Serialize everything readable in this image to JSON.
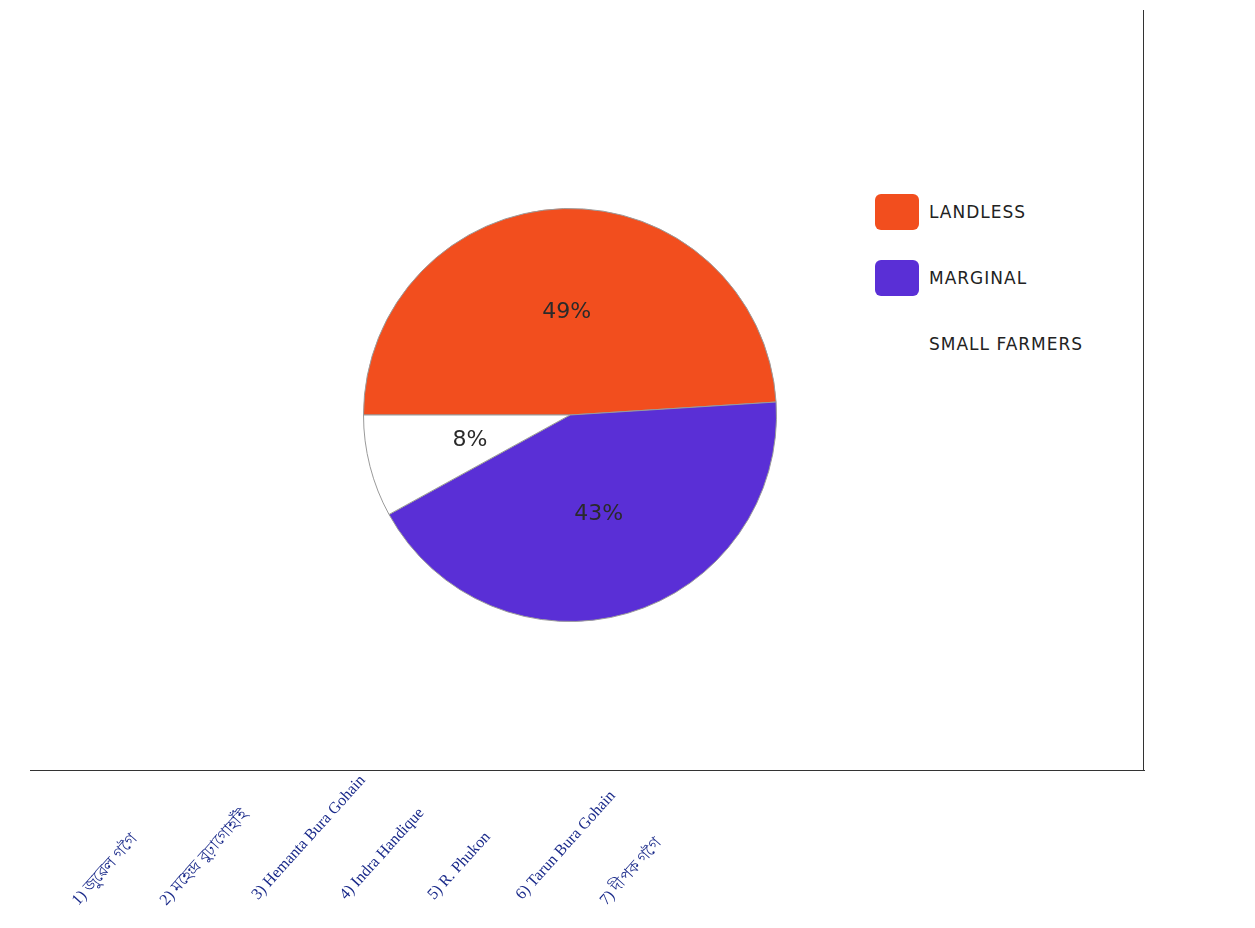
{
  "chart_data": {
    "type": "pie",
    "categories": [
      "LANDLESS",
      "MARGINAL",
      "SMALL FARMERS"
    ],
    "values": [
      49,
      43,
      8
    ],
    "value_labels": [
      "49%",
      "43%",
      "8%"
    ],
    "colors": [
      "#f24e1e",
      "#5a2fd6",
      "#ffffff"
    ],
    "data_labels": true,
    "legend": "right",
    "annotations": [
      "1) জুৱেল গগৈ",
      "2) মহেন্দ্ৰ বুঢ়াগোহাঁই",
      "3) Hemanta Bura Gohain",
      "4) Indra Handique",
      "5) R. Phukon",
      "6) Tarun Bura Gohain",
      "7) দীপক গগৈ"
    ]
  }
}
